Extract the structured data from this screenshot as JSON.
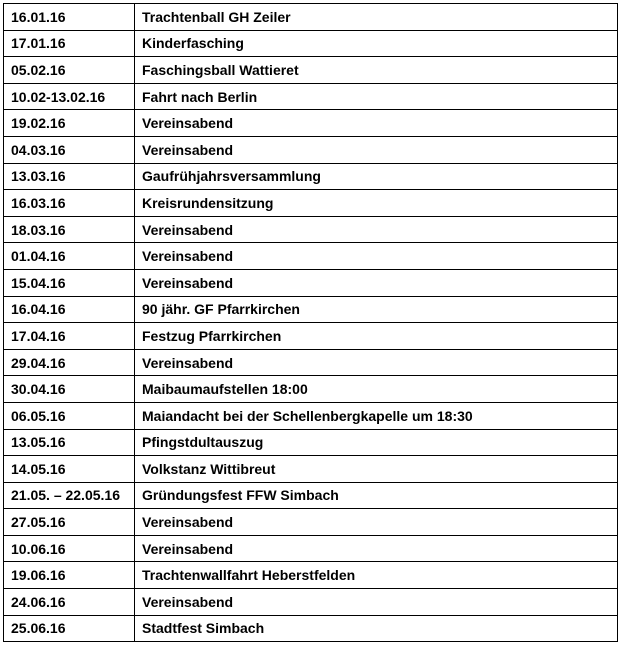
{
  "rows": [
    {
      "date": "16.01.16",
      "event": "Trachtenball GH Zeiler"
    },
    {
      "date": "17.01.16",
      "event": "Kinderfasching"
    },
    {
      "date": "05.02.16",
      "event": "Faschingsball Wattieret"
    },
    {
      "date": "10.02-13.02.16",
      "event": "Fahrt nach Berlin"
    },
    {
      "date": "19.02.16",
      "event": "Vereinsabend"
    },
    {
      "date": "04.03.16",
      "event": "Vereinsabend"
    },
    {
      "date": "13.03.16",
      "event": "Gaufrühjahrsversammlung"
    },
    {
      "date": "16.03.16",
      "event": "Kreisrundensitzung"
    },
    {
      "date": "18.03.16",
      "event": "Vereinsabend"
    },
    {
      "date": "01.04.16",
      "event": "Vereinsabend"
    },
    {
      "date": "15.04.16",
      "event": "Vereinsabend"
    },
    {
      "date": "16.04.16",
      "event": "90 jähr. GF Pfarrkirchen"
    },
    {
      "date": "17.04.16",
      "event": "Festzug Pfarrkirchen"
    },
    {
      "date": "29.04.16",
      "event": "Vereinsabend"
    },
    {
      "date": "30.04.16",
      "event": "Maibaumaufstellen 18:00"
    },
    {
      "date": "06.05.16",
      "event": "Maiandacht bei der Schellenbergkapelle um 18:30"
    },
    {
      "date": "13.05.16",
      "event": "Pfingstdultauszug"
    },
    {
      "date": "14.05.16",
      "event": "Volkstanz Wittibreut"
    },
    {
      "date": "21.05. – 22.05.16",
      "event": "Gründungsfest FFW Simbach"
    },
    {
      "date": "27.05.16",
      "event": "Vereinsabend"
    },
    {
      "date": "10.06.16",
      "event": "Vereinsabend"
    },
    {
      "date": "19.06.16",
      "event": "Trachtenwallfahrt Heberstfelden"
    },
    {
      "date": "24.06.16",
      "event": "Vereinsabend"
    },
    {
      "date": "25.06.16",
      "event": "Stadtfest Simbach"
    }
  ]
}
